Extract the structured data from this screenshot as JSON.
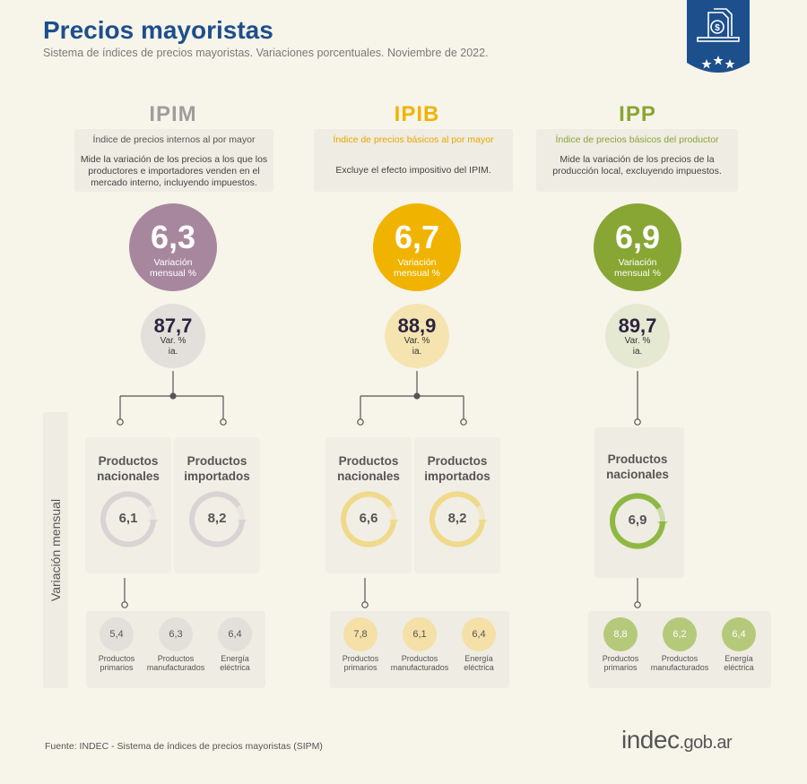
{
  "header": {
    "title": "Precios mayoristas",
    "subtitle": "Sistema de índices de precios mayoristas. Variaciones porcentuales. Noviembre de 2022."
  },
  "badge_icon": "price-tag-icon",
  "vertical_label": "Variación mensual",
  "indices": [
    {
      "code": "IPIM",
      "name": "Índice de precios internos al por mayor",
      "description": "Mide la variación de los precios a los que los productores e importadores venden en el mercado interno, incluyendo impuestos.",
      "monthly": "6,3",
      "monthly_label": "Variación mensual %",
      "annual": "87,7",
      "annual_label": "Var. % ia.",
      "products": [
        {
          "label": "Productos nacionales",
          "value": "6,1"
        },
        {
          "label": "Productos importados",
          "value": "8,2"
        }
      ],
      "sub": [
        {
          "value": "5,4",
          "label": "Productos primarios"
        },
        {
          "value": "6,3",
          "label": "Productos manufacturados"
        },
        {
          "value": "6,4",
          "label": "Energía eléctrica"
        }
      ],
      "colors": {
        "main": "#a7879e",
        "code": "#9e9e9e",
        "name": "#555555",
        "mid": "#e3e0dc",
        "ring": "#d9d4d3",
        "small": "#e3e0dc"
      }
    },
    {
      "code": "IPIB",
      "name": "Índice de precios básicos al por mayor",
      "description": "Excluye el efecto impositivo del IPIM.",
      "monthly": "6,7",
      "monthly_label": "Variación mensual %",
      "annual": "88,9",
      "annual_label": "Var. % ia.",
      "products": [
        {
          "label": "Productos nacionales",
          "value": "6,6"
        },
        {
          "label": "Productos importados",
          "value": "8,2"
        }
      ],
      "sub": [
        {
          "value": "7,8",
          "label": "Productos primarios"
        },
        {
          "value": "6,1",
          "label": "Productos manufacturados"
        },
        {
          "value": "6,4",
          "label": "Energía eléctrica"
        }
      ],
      "colors": {
        "main": "#f0b300",
        "code": "#f0b300",
        "name": "#e8a800",
        "mid": "#f5e4b0",
        "ring": "#f0d98a",
        "small": "#f5e0a8"
      }
    },
    {
      "code": "IPP",
      "name": "Índice de precios básicos del productor",
      "description": "Mide la variación de los precios de la producción local, excluyendo impuestos.",
      "monthly": "6,9",
      "monthly_label": "Variación mensual %",
      "annual": "89,7",
      "annual_label": "Var. % ia.",
      "products": [
        {
          "label": "Productos nacionales",
          "value": "6,9"
        }
      ],
      "sub": [
        {
          "value": "8,8",
          "label": "Productos primarios"
        },
        {
          "value": "6,2",
          "label": "Productos manufacturados"
        },
        {
          "value": "6,4",
          "label": "Energía eléctrica"
        }
      ],
      "colors": {
        "main": "#88a633",
        "code": "#88a633",
        "name": "#88a633",
        "mid": "#e6e9d2",
        "ring": "#8eb842",
        "small": "#b5c97a"
      }
    }
  ],
  "footer": {
    "source": "Fuente: INDEC - Sistema de índices de precios mayoristas (SIPM)",
    "logo_main": "indec",
    "logo_suffix": ".gob.ar"
  }
}
